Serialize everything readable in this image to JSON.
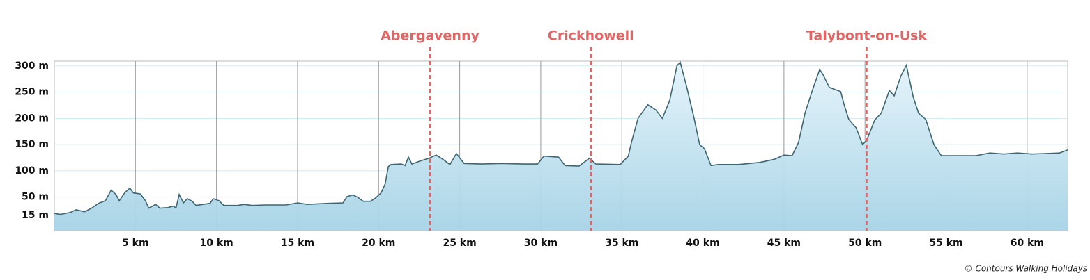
{
  "chart_data": {
    "type": "area",
    "x": [
      0,
      0.36,
      1.0,
      1.35,
      1.86,
      2.3,
      2.72,
      3.15,
      3.5,
      3.8,
      4.0,
      4.36,
      4.66,
      4.87,
      5.3,
      5.6,
      5.82,
      6.07,
      6.25,
      6.5,
      7.0,
      7.36,
      7.5,
      7.7,
      7.96,
      8.2,
      8.5,
      8.74,
      9.17,
      9.6,
      9.8,
      10.16,
      10.45,
      11.3,
      11.7,
      12.2,
      13.0,
      14.3,
      15.0,
      15.6,
      16.9,
      17.8,
      18.05,
      18.4,
      18.7,
      19.05,
      19.5,
      19.8,
      20.15,
      20.4,
      20.6,
      20.77,
      21.4,
      21.63,
      21.84,
      22.05,
      22.5,
      23.1,
      23.55,
      23.97,
      24.4,
      24.8,
      25.27,
      26.35,
      27.6,
      28.9,
      29.8,
      30.2,
      31.1,
      31.5,
      32.36,
      33.0,
      33.4,
      34.9,
      35.4,
      35.6,
      36.0,
      36.6,
      37.1,
      37.5,
      37.95,
      38.4,
      38.6,
      39.0,
      39.45,
      39.8,
      40.1,
      40.5,
      40.95,
      42.2,
      43.5,
      44.4,
      45.0,
      45.5,
      45.9,
      46.3,
      46.75,
      47.2,
      47.4,
      47.8,
      48.5,
      48.7,
      49.0,
      49.45,
      49.85,
      50.1,
      50.6,
      51.0,
      51.5,
      51.8,
      52.2,
      52.55,
      52.98,
      53.3,
      53.75,
      54.25,
      54.7,
      55.55,
      56.85,
      57.7,
      58.56,
      59.4,
      60.3,
      61.1,
      62.0,
      62.5
    ],
    "values": [
      19,
      17,
      21,
      26,
      22,
      29,
      38,
      43,
      63,
      55,
      43,
      59,
      67,
      58,
      56,
      44,
      29,
      33,
      36,
      29,
      30,
      33,
      29,
      55,
      39,
      47,
      42,
      34,
      36,
      38,
      47,
      43,
      34,
      34,
      36,
      34,
      35,
      35,
      39,
      36,
      38,
      39,
      51,
      54,
      50,
      42,
      42,
      48,
      58,
      75,
      108,
      112,
      113,
      110,
      126,
      113,
      118,
      124,
      130,
      122,
      112,
      133,
      114,
      113,
      114,
      113,
      113,
      128,
      126,
      110,
      109,
      124,
      113,
      112,
      128,
      155,
      200,
      226,
      216,
      200,
      234,
      300,
      307,
      260,
      201,
      150,
      142,
      110,
      112,
      112,
      116,
      122,
      130,
      129,
      154,
      210,
      253,
      293,
      284,
      259,
      251,
      227,
      198,
      182,
      150,
      158,
      197,
      210,
      253,
      243,
      280,
      301,
      240,
      210,
      198,
      150,
      129,
      129,
      129,
      134,
      132,
      134,
      132,
      133,
      134,
      140
    ],
    "xlim": [
      0,
      62.5
    ],
    "ylim": [
      -14,
      309
    ],
    "xticks": [
      {
        "value": 5,
        "label": "5 km"
      },
      {
        "value": 10,
        "label": "10 km"
      },
      {
        "value": 15,
        "label": "15 km"
      },
      {
        "value": 20,
        "label": "20 km"
      },
      {
        "value": 25,
        "label": "25 km"
      },
      {
        "value": 30,
        "label": "30 km"
      },
      {
        "value": 35,
        "label": "35 km"
      },
      {
        "value": 40,
        "label": "40 km"
      },
      {
        "value": 45,
        "label": "45 km"
      },
      {
        "value": 50,
        "label": "50 km"
      },
      {
        "value": 55,
        "label": "55 km"
      },
      {
        "value": 60,
        "label": "60 km"
      }
    ],
    "yticks": [
      {
        "value": 15,
        "label": "15 m"
      },
      {
        "value": 50,
        "label": "50 m"
      },
      {
        "value": 100,
        "label": "100 m"
      },
      {
        "value": 150,
        "label": "150 m"
      },
      {
        "value": 200,
        "label": "200 m"
      },
      {
        "value": 250,
        "label": "250 m"
      },
      {
        "value": 300,
        "label": "300 m"
      }
    ],
    "annotations": [
      {
        "label": "Abergavenny",
        "x": 23.17
      },
      {
        "label": "Crickhowell",
        "x": 33.09
      },
      {
        "label": "Talybont-on-Usk",
        "x": 50.1
      }
    ],
    "annotation_color": "#e06666",
    "line_color": "#3d6672",
    "grid": true,
    "credit": "© Contours Walking Holidays"
  }
}
